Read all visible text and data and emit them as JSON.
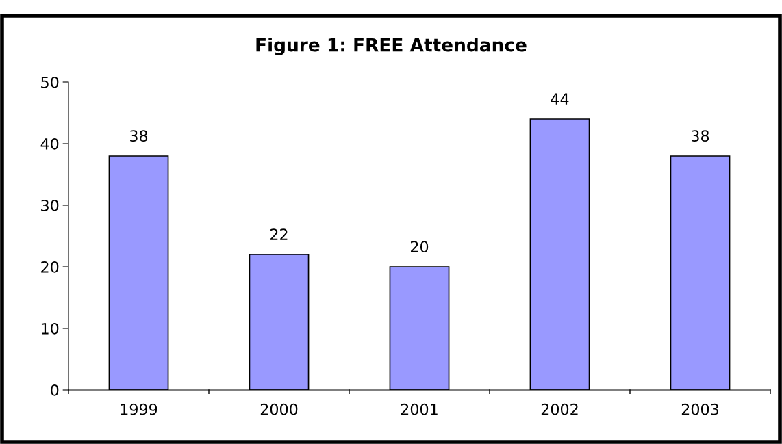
{
  "chart_data": {
    "type": "bar",
    "title": "Figure 1: FREE Attendance",
    "categories": [
      "1999",
      "2000",
      "2001",
      "2002",
      "2003"
    ],
    "values": [
      38,
      22,
      20,
      44,
      38
    ],
    "color": "#9999ff",
    "ylim": [
      0,
      50
    ],
    "yticks": [
      0,
      10,
      20,
      30,
      40,
      50
    ],
    "data_labels": true,
    "grid": false,
    "legend": false
  }
}
